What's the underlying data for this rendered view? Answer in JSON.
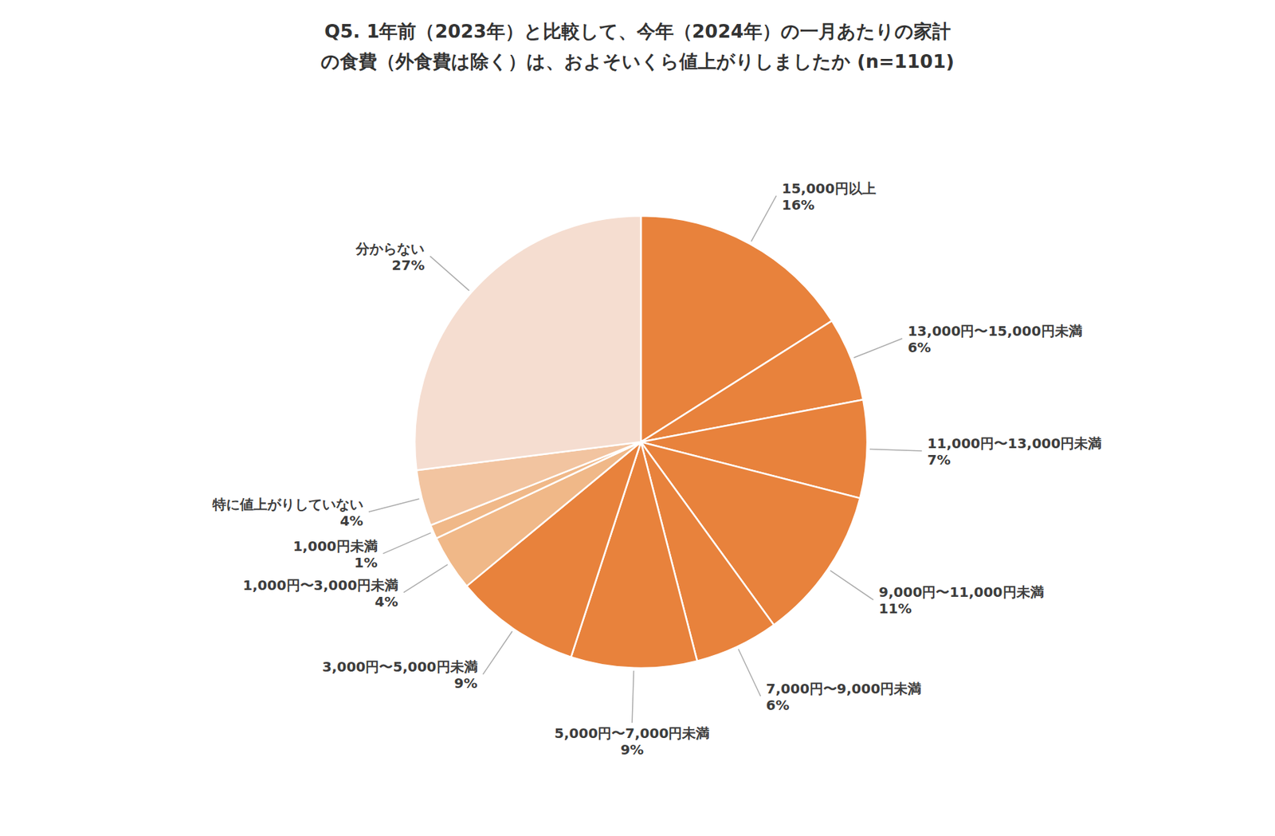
{
  "chart_data": {
    "type": "pie",
    "title": "Q5. 1年前（2023年）と比較して、今年（2024年）の一月あたりの家計\nの食費（外食費は除く）は、およそいくら値上がりしましたか (n=1101)",
    "categories": [
      "15,000円以上",
      "13,000円〜15,000円未満",
      "11,000円〜13,000円未満",
      "9,000円〜11,000円未満",
      "7,000円〜9,000円未満",
      "5,000円〜7,000円未満",
      "3,000円〜5,000円未満",
      "1,000円〜3,000円未満",
      "1,000円未満",
      "特に値上がりしていない",
      "分からない"
    ],
    "values": [
      16,
      6,
      7,
      11,
      6,
      9,
      9,
      4,
      1,
      4,
      27
    ],
    "value_labels": [
      "16%",
      "6%",
      "7%",
      "11%",
      "6%",
      "9%",
      "9%",
      "4%",
      "1%",
      "4%",
      "27%"
    ],
    "colors": [
      "#E8823C",
      "#E8823C",
      "#E8823C",
      "#E8823C",
      "#E8823C",
      "#E8823C",
      "#E8823C",
      "#F0B888",
      "#F0B888",
      "#F2C4A0",
      "#F5DDD0"
    ],
    "data_labels": true
  }
}
